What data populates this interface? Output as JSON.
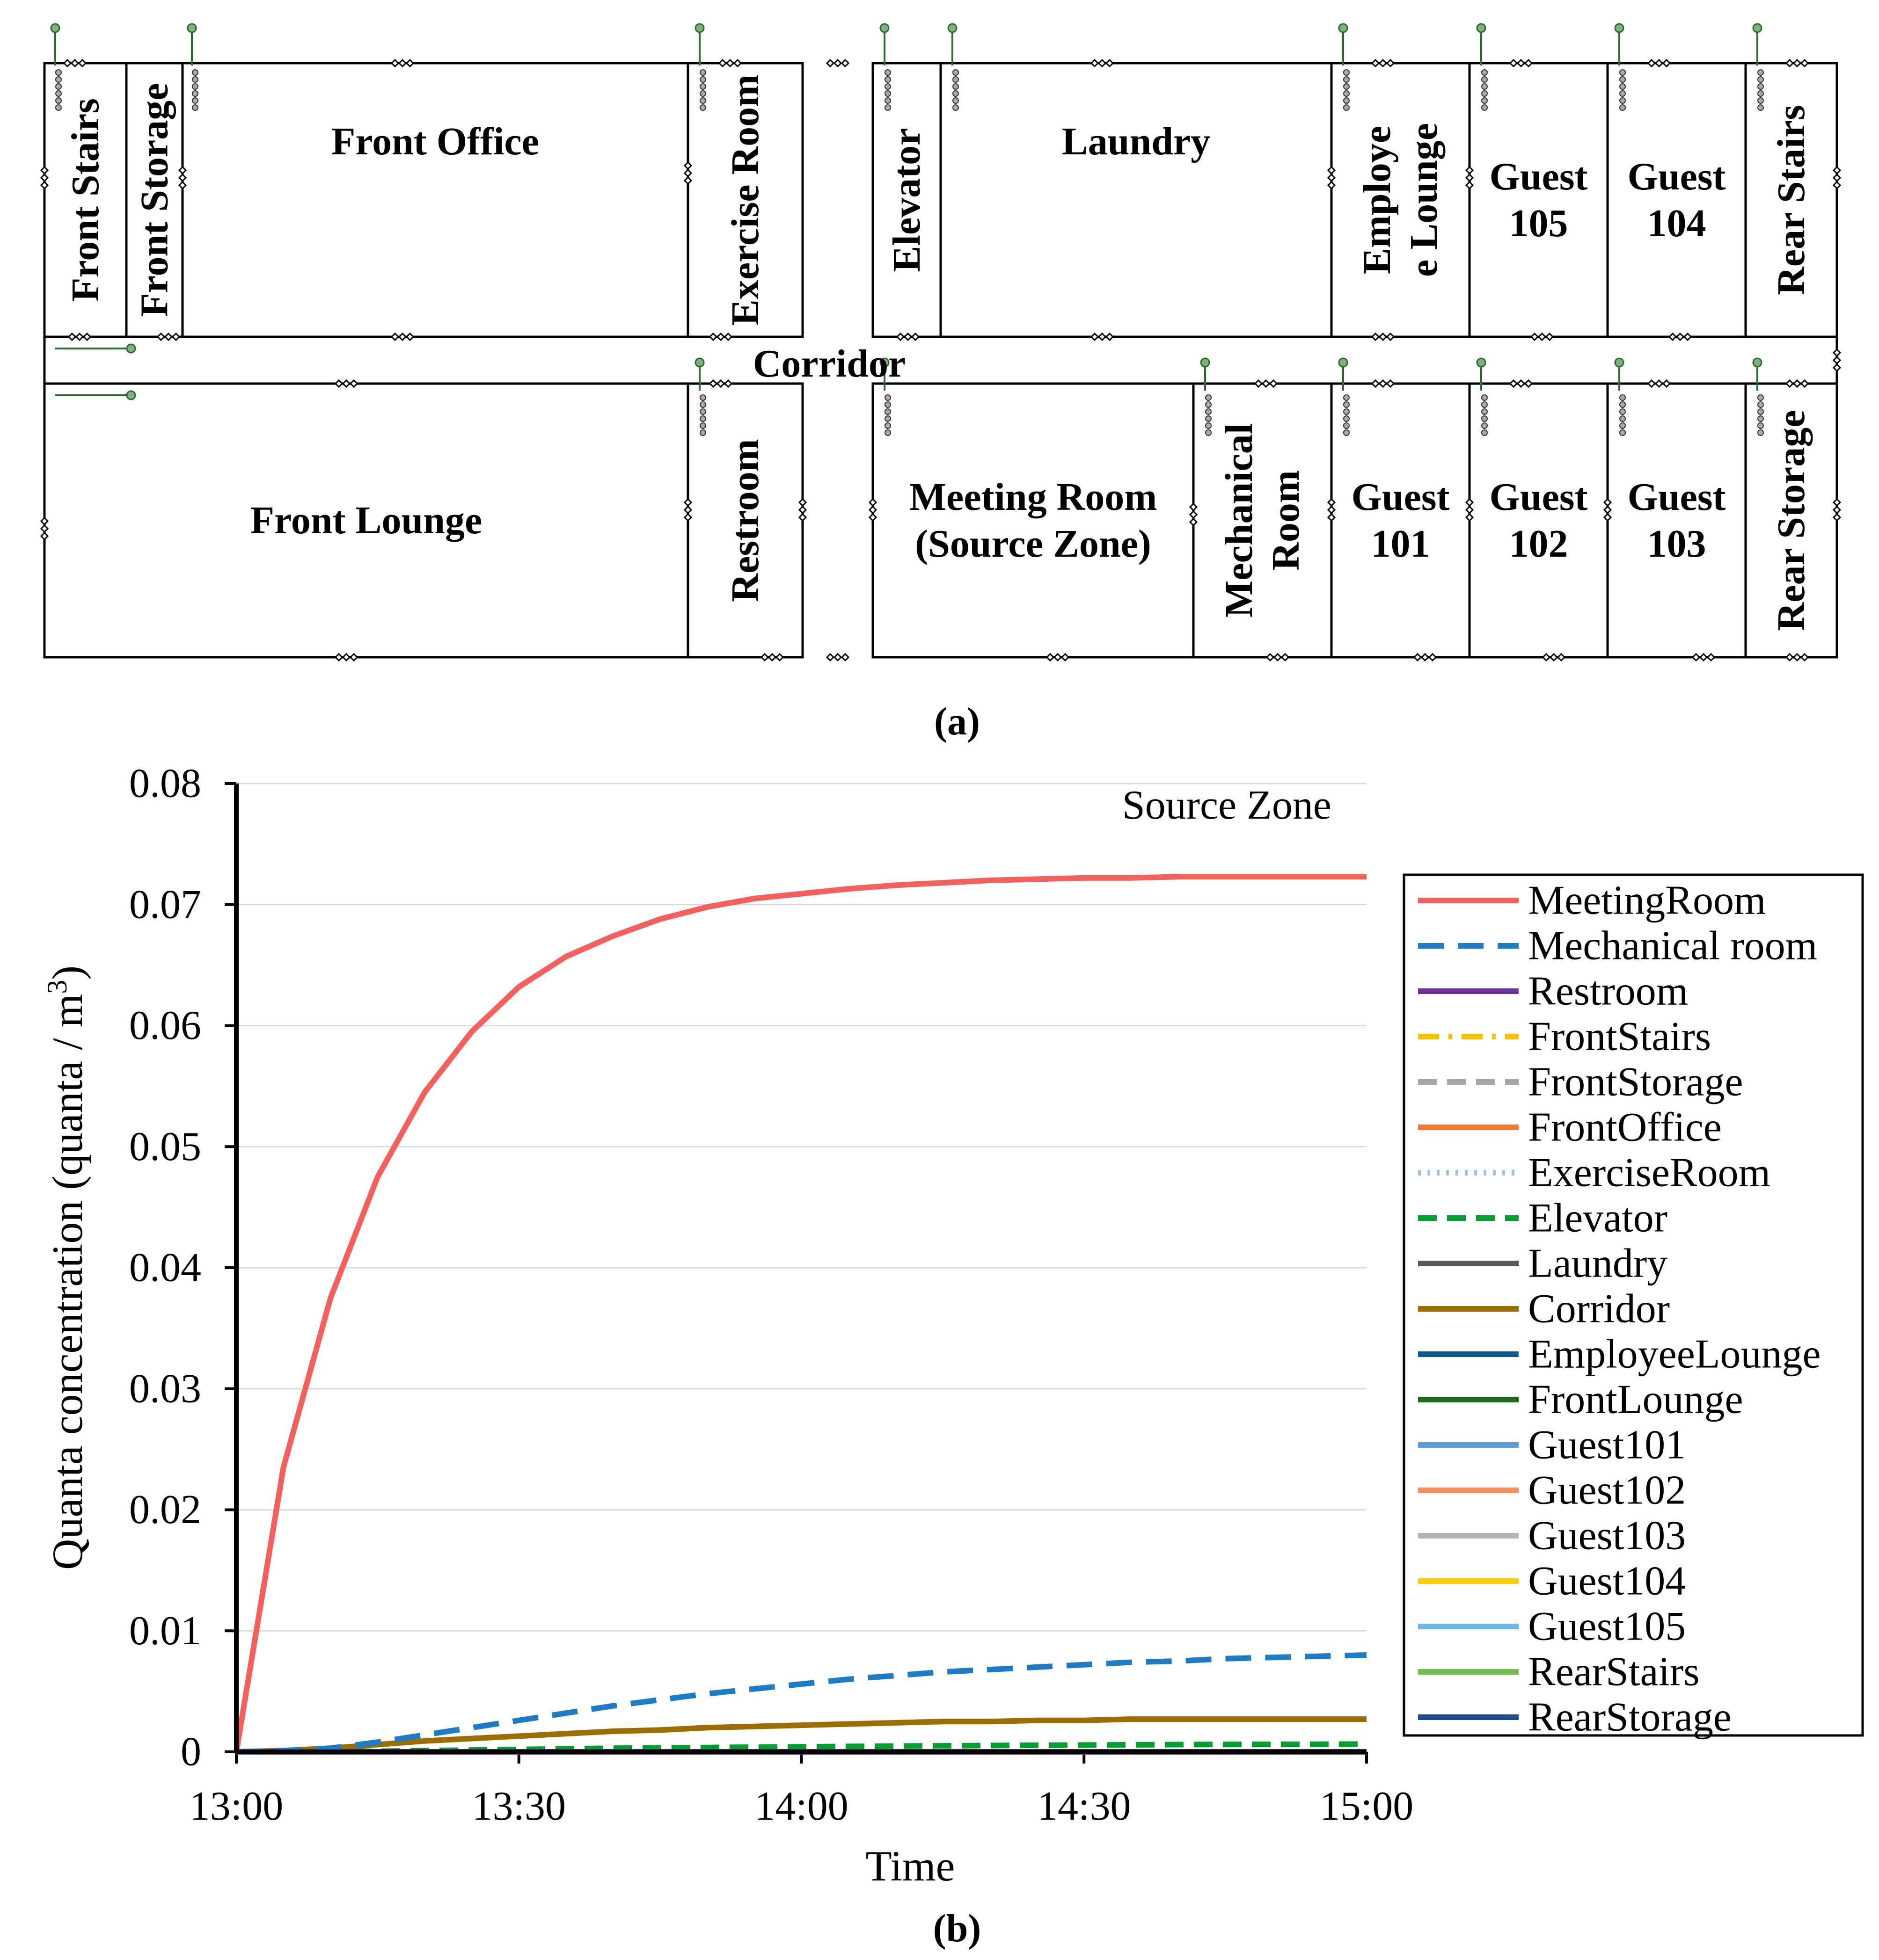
{
  "floorplan": {
    "caption": "(a)",
    "corridor_label": "Corridor",
    "rooms_top": [
      {
        "id": "front-stairs",
        "lines": [
          "Front Stairs"
        ],
        "vertical": true
      },
      {
        "id": "front-storage",
        "lines": [
          "Front Storage"
        ],
        "vertical": true
      },
      {
        "id": "front-office",
        "lines": [
          "Front Office"
        ],
        "vertical": false
      },
      {
        "id": "exercise-room",
        "lines": [
          "Exercise Room"
        ],
        "vertical": true
      },
      {
        "id": "elevator",
        "lines": [
          "Elevator"
        ],
        "vertical": true
      },
      {
        "id": "laundry",
        "lines": [
          "Laundry"
        ],
        "vertical": false
      },
      {
        "id": "employee-lounge",
        "lines": [
          "Employe",
          "e Lounge"
        ],
        "vertical": true
      },
      {
        "id": "guest-105",
        "lines": [
          "Guest",
          "105"
        ],
        "vertical": false
      },
      {
        "id": "guest-104",
        "lines": [
          "Guest",
          "104"
        ],
        "vertical": false
      },
      {
        "id": "rear-stairs",
        "lines": [
          "Rear Stairs"
        ],
        "vertical": true
      }
    ],
    "rooms_bottom": [
      {
        "id": "front-lounge",
        "lines": [
          "Front Lounge"
        ],
        "vertical": false
      },
      {
        "id": "restroom",
        "lines": [
          "Restroom"
        ],
        "vertical": true
      },
      {
        "id": "meeting-room",
        "lines": [
          "Meeting Room",
          "(Source Zone)"
        ],
        "vertical": false
      },
      {
        "id": "mechanical-room",
        "lines": [
          "Mechanical",
          "Room"
        ],
        "vertical": true
      },
      {
        "id": "guest-101",
        "lines": [
          "Guest",
          "101"
        ],
        "vertical": false
      },
      {
        "id": "guest-102",
        "lines": [
          "Guest",
          "102"
        ],
        "vertical": false
      },
      {
        "id": "guest-103",
        "lines": [
          "Guest",
          "103"
        ],
        "vertical": false
      },
      {
        "id": "rear-storage",
        "lines": [
          "Rear Storage"
        ],
        "vertical": true
      }
    ]
  },
  "chart_data": {
    "type": "line",
    "caption": "(b)",
    "annotation": "Source Zone",
    "xlabel": "Time",
    "ylabel_main": "Quanta concentration (quanta / m",
    "ylabel_sup": "3",
    "ylabel_end": ")",
    "x_ticks": [
      "13:00",
      "13:30",
      "14:00",
      "14:30",
      "15:00"
    ],
    "x_range_minutes": [
      0,
      120
    ],
    "ylim": [
      0,
      0.08
    ],
    "y_ticks": [
      "0",
      "0.01",
      "0.02",
      "0.03",
      "0.04",
      "0.05",
      "0.06",
      "0.07",
      "0.08"
    ],
    "grid": true,
    "legend_position": "right",
    "x_minutes": [
      0,
      5,
      10,
      15,
      20,
      25,
      30,
      35,
      40,
      45,
      50,
      55,
      60,
      65,
      70,
      75,
      80,
      85,
      90,
      95,
      100,
      105,
      110,
      115,
      120
    ],
    "series": [
      {
        "name": "MeetingRoom",
        "color": "#f4605c",
        "dash": "solid",
        "values": [
          0,
          0.0235,
          0.0375,
          0.0475,
          0.0545,
          0.0595,
          0.0632,
          0.0657,
          0.0674,
          0.0688,
          0.0698,
          0.0705,
          0.0709,
          0.0713,
          0.0716,
          0.0718,
          0.072,
          0.0721,
          0.0722,
          0.0722,
          0.0723,
          0.0723,
          0.0723,
          0.0723,
          0.0723
        ]
      },
      {
        "name": "Mechanical room",
        "color": "#1f7bc6",
        "dash": "long-dash",
        "values": [
          0,
          0.0001,
          0.0003,
          0.0008,
          0.0014,
          0.002,
          0.0026,
          0.0032,
          0.0038,
          0.0043,
          0.0048,
          0.0052,
          0.0056,
          0.006,
          0.0063,
          0.0066,
          0.0068,
          0.007,
          0.0072,
          0.0074,
          0.0075,
          0.0077,
          0.0078,
          0.0079,
          0.008
        ]
      },
      {
        "name": "Restroom",
        "color": "#7030a0",
        "dash": "solid",
        "values": [
          0,
          0,
          0,
          0,
          0,
          0,
          0,
          0,
          0,
          0,
          0,
          0,
          0,
          0,
          0,
          0,
          0,
          0,
          0,
          0,
          0,
          0,
          0,
          0,
          0
        ]
      },
      {
        "name": "FrontStairs",
        "color": "#ffc000",
        "dash": "dash-dot",
        "values": [
          0,
          0,
          0,
          0,
          0,
          0,
          0,
          0,
          0,
          0,
          0,
          0,
          0,
          0,
          0,
          0,
          0,
          0,
          0,
          0,
          0,
          0,
          0,
          0,
          0
        ]
      },
      {
        "name": "FrontStorage",
        "color": "#a5a5a5",
        "dash": "dash",
        "values": [
          0,
          0,
          0,
          0,
          0,
          0,
          0,
          0,
          0,
          0,
          0,
          0,
          0,
          0,
          0,
          0,
          0,
          0,
          0,
          0,
          0,
          0,
          0,
          0,
          0
        ]
      },
      {
        "name": "FrontOffice",
        "color": "#ed7d31",
        "dash": "solid",
        "values": [
          0,
          0,
          0,
          0,
          0,
          0,
          0,
          0,
          0,
          0,
          0,
          0,
          0,
          0,
          0,
          0,
          0,
          0,
          0,
          0,
          0,
          0,
          0,
          0,
          0
        ]
      },
      {
        "name": "ExerciseRoom",
        "color": "#9dc3e6",
        "dash": "dot",
        "values": [
          0,
          0,
          0,
          0,
          0,
          0,
          0,
          0,
          0,
          0,
          0,
          0,
          0,
          0,
          0,
          0,
          0,
          0,
          0,
          0,
          0,
          0,
          0,
          0,
          0
        ]
      },
      {
        "name": "Elevator",
        "color": "#00a030",
        "dash": "dash",
        "values": [
          0,
          0,
          0,
          5e-05,
          0.0001,
          0.00015,
          0.0002,
          0.00025,
          0.0003,
          0.00033,
          0.00036,
          0.00039,
          0.00042,
          0.00045,
          0.00047,
          0.0005,
          0.00052,
          0.00054,
          0.00056,
          0.00058,
          0.0006,
          0.00061,
          0.00062,
          0.00063,
          0.00064
        ]
      },
      {
        "name": "Laundry",
        "color": "#595959",
        "dash": "solid",
        "values": [
          0,
          0,
          0,
          0,
          0,
          0,
          0,
          0,
          0,
          0,
          0,
          0,
          0,
          0,
          0,
          0,
          0,
          0,
          0,
          0,
          0,
          0,
          0,
          0,
          0
        ]
      },
      {
        "name": "Corridor",
        "color": "#9c6e00",
        "dash": "solid",
        "values": [
          0,
          0.0001,
          0.0003,
          0.0006,
          0.0009,
          0.0011,
          0.0013,
          0.0015,
          0.0017,
          0.0018,
          0.002,
          0.0021,
          0.0022,
          0.0023,
          0.0024,
          0.0025,
          0.0025,
          0.0026,
          0.0026,
          0.0027,
          0.0027,
          0.0027,
          0.0027,
          0.0027,
          0.0027
        ]
      },
      {
        "name": "EmployeeLounge",
        "color": "#0d5a8c",
        "dash": "solid",
        "values": [
          0,
          0,
          0,
          0,
          0,
          0,
          0,
          0,
          0,
          0,
          0,
          0,
          0,
          0,
          0,
          0,
          0,
          0,
          0,
          0,
          0,
          0,
          0,
          0,
          0
        ]
      },
      {
        "name": "FrontLounge",
        "color": "#1e6b1e",
        "dash": "solid",
        "values": [
          0,
          0,
          0,
          0,
          0,
          0,
          0,
          0,
          0,
          0,
          0,
          0,
          0,
          0,
          0,
          0,
          0,
          0,
          0,
          0,
          0,
          0,
          0,
          0,
          0
        ]
      },
      {
        "name": "Guest101",
        "color": "#5b9bd5",
        "dash": "solid",
        "values": [
          0,
          0,
          0,
          0,
          0,
          0,
          0,
          0,
          0,
          0,
          0,
          0,
          0,
          0,
          0,
          0,
          0,
          0,
          0,
          0,
          0,
          0,
          0,
          0,
          0
        ]
      },
      {
        "name": "Guest102",
        "color": "#f4915e",
        "dash": "solid",
        "values": [
          0,
          0,
          0,
          0,
          0,
          0,
          0,
          0,
          0,
          0,
          0,
          0,
          0,
          0,
          0,
          0,
          0,
          0,
          0,
          0,
          0,
          0,
          0,
          0,
          0
        ]
      },
      {
        "name": "Guest103",
        "color": "#b4b4b4",
        "dash": "solid",
        "values": [
          0,
          0,
          0,
          0,
          0,
          0,
          0,
          0,
          0,
          0,
          0,
          0,
          0,
          0,
          0,
          0,
          0,
          0,
          0,
          0,
          0,
          0,
          0,
          0,
          0
        ]
      },
      {
        "name": "Guest104",
        "color": "#ffcc00",
        "dash": "solid",
        "values": [
          0,
          0,
          0,
          0,
          0,
          0,
          0,
          0,
          0,
          0,
          0,
          0,
          0,
          0,
          0,
          0,
          0,
          0,
          0,
          0,
          0,
          0,
          0,
          0,
          0
        ]
      },
      {
        "name": "Guest105",
        "color": "#6fb4e6",
        "dash": "solid",
        "values": [
          0,
          0,
          0,
          0,
          0,
          0,
          0,
          0,
          0,
          0,
          0,
          0,
          0,
          0,
          0,
          0,
          0,
          0,
          0,
          0,
          0,
          0,
          0,
          0,
          0
        ]
      },
      {
        "name": "RearStairs",
        "color": "#70bf50",
        "dash": "solid",
        "values": [
          0,
          0,
          0,
          0,
          0,
          0,
          0,
          0,
          0,
          0,
          0,
          0,
          0,
          0,
          0,
          0,
          0,
          0,
          0,
          0,
          0,
          0,
          0,
          0,
          0
        ]
      },
      {
        "name": "RearStorage",
        "color": "#1f4e8c",
        "dash": "solid",
        "values": [
          0,
          0,
          0,
          0,
          0,
          0,
          0,
          0,
          0,
          0,
          0,
          0,
          0,
          0,
          0,
          0,
          0,
          0,
          0,
          0,
          0,
          0,
          0,
          0,
          0
        ]
      }
    ]
  }
}
